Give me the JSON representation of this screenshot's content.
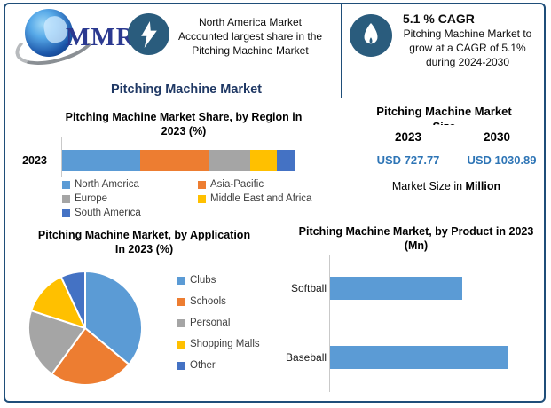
{
  "brand": {
    "logo_text": "MMR"
  },
  "header": {
    "highlight": {
      "lines": [
        "North America Market",
        "Accounted largest share in the",
        "Pitching Machine Market"
      ]
    },
    "cagr": {
      "title": "5.1 % CAGR",
      "lines": [
        "Pitching Machine Market to",
        "grow at a CAGR of 5.1%",
        "during 2024-2030"
      ]
    }
  },
  "main_title": "Pitching Machine Market",
  "colors": {
    "border_navy": "#1F4E79",
    "title_navy": "#1F3864",
    "badge_circle": "#2A5C7D",
    "value_blue": "#2E75B6",
    "axis_gray": "#C9C9C9"
  },
  "chart_data": [
    {
      "id": "region_share",
      "type": "bar",
      "variant": "stacked-horizontal",
      "title": "Pitching Machine Market Share, by Region in 2023 (%)",
      "categories": [
        "2023"
      ],
      "series": [
        {
          "name": "North America",
          "color": "#5B9BD5",
          "values": [
            33.5
          ]
        },
        {
          "name": "Asia-Pacific",
          "color": "#ED7D31",
          "values": [
            29.5
          ]
        },
        {
          "name": "Europe",
          "color": "#A5A5A5",
          "values": [
            17.5
          ]
        },
        {
          "name": "Middle East and Africa",
          "color": "#FFC000",
          "values": [
            11.5
          ]
        },
        {
          "name": "South America",
          "color": "#4472C4",
          "values": [
            8
          ]
        }
      ],
      "xlim": [
        0,
        100
      ],
      "legend_position": "bottom"
    },
    {
      "id": "market_size",
      "type": "table",
      "title": "Pitching Machine Market",
      "clipped_line": "Size",
      "columns": [
        {
          "year": "2023",
          "value": "USD 727.77"
        },
        {
          "year": "2030",
          "value": "USD 1030.89"
        }
      ],
      "footnote_prefix": "Market Size in ",
      "footnote_bold": "Million"
    },
    {
      "id": "application_pie",
      "type": "pie",
      "title": "Pitching Machine Market, by Application In 2023 (%)",
      "slices": [
        {
          "label": "Clubs",
          "value": 36,
          "color": "#5B9BD5"
        },
        {
          "label": "Schools",
          "value": 24,
          "color": "#ED7D31"
        },
        {
          "label": "Personal",
          "value": 20,
          "color": "#A5A5A5"
        },
        {
          "label": "Shopping Malls",
          "value": 13,
          "color": "#FFC000"
        },
        {
          "label": "Other",
          "value": 7,
          "color": "#4472C4"
        }
      ],
      "start_angle_deg": 0,
      "direction": "clockwise",
      "legend_position": "right"
    },
    {
      "id": "product_bar",
      "type": "bar",
      "variant": "horizontal",
      "title": "Pitching Machine Market, by Product in 2023 (Mn)",
      "categories": [
        "Softball",
        "Baseball"
      ],
      "values": [
        74.5,
        100
      ],
      "xlim": [
        0,
        100
      ],
      "color": "#5B9BD5",
      "note_axis": "no numeric tick labels shown; bar lengths relative (Baseball = 100)"
    }
  ]
}
